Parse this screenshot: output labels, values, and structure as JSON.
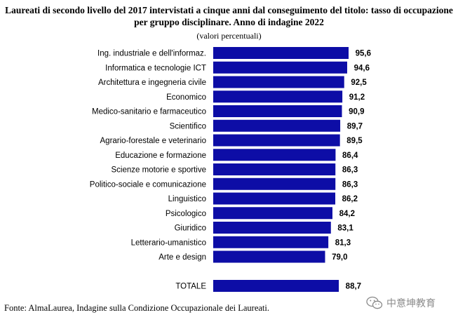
{
  "header": {
    "title_line1": "Laureati di secondo livello del 2017 intervistati a cinque anni dal conseguimento del titolo: tasso di occupazione",
    "title_line2": "per gruppo disciplinare. Anno di indagine 2022",
    "subtitle": "(valori percentuali)"
  },
  "chart_data": {
    "type": "bar",
    "orientation": "horizontal",
    "title": "Laureati di secondo livello del 2017 intervistati a cinque anni dal conseguimento del titolo: tasso di occupazione per gruppo disciplinare. Anno di indagine 2022",
    "subtitle": "(valori percentuali)",
    "categories": [
      "Ing. industriale e dell'informaz.",
      "Informatica e tecnologie ICT",
      "Architettura e ingegneria civile",
      "Economico",
      "Medico-sanitario e farmaceutico",
      "Scientifico",
      "Agrario-forestale e veterinario",
      "Educazione e formazione",
      "Scienze motorie e sportive",
      "Politico-sociale e comunicazione",
      "Linguistico",
      "Psicologico",
      "Giuridico",
      "Letterario-umanistico",
      "Arte e design",
      "",
      "TOTALE"
    ],
    "values": [
      95.6,
      94.6,
      92.5,
      91.2,
      90.9,
      89.7,
      89.5,
      86.4,
      86.3,
      86.3,
      86.2,
      84.2,
      83.1,
      81.3,
      79.0,
      null,
      88.7
    ],
    "value_labels": [
      "95,6",
      "94,6",
      "92,5",
      "91,2",
      "90,9",
      "89,7",
      "89,5",
      "86,4",
      "86,3",
      "86,3",
      "86,2",
      "84,2",
      "83,1",
      "81,3",
      "79,0",
      "",
      "88,7"
    ],
    "bar_color": "#0d0da6",
    "xlim": [
      0,
      100
    ],
    "xlabel": "",
    "ylabel": "",
    "grid": false,
    "legend": "none"
  },
  "footer": {
    "source": "Fonte: AlmaLaurea, Indagine sulla Condizione Occupazionale dei Laureati."
  },
  "watermark": {
    "icon": "wechat-logo-icon",
    "text": "中意坤教育"
  }
}
